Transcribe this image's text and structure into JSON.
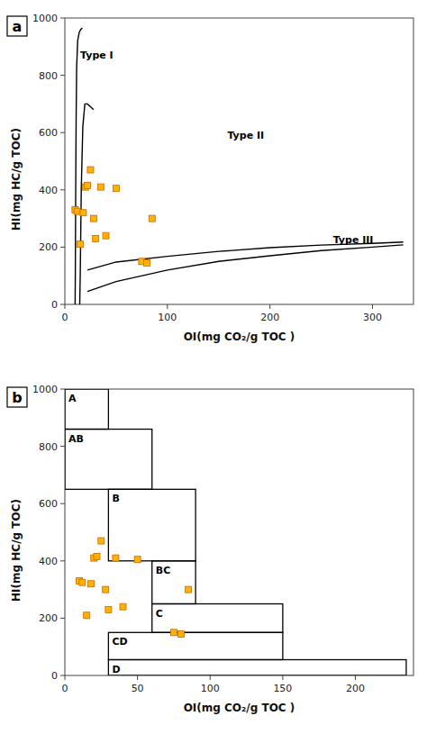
{
  "chart_data": [
    {
      "type": "scatter",
      "title": "a",
      "x_label": "OI(mg CO₂/g TOC )",
      "y_label": "HI(mg HC/g TOC)",
      "xlim": [
        0,
        340
      ],
      "ylim": [
        0,
        1000
      ],
      "xticks": [
        0,
        100,
        200,
        300
      ],
      "yticks": [
        0,
        200,
        400,
        600,
        800,
        1000
      ],
      "series": [
        {
          "type": "line",
          "color": "#000000",
          "x": [
            10.0,
            10.2,
            10.5,
            11.0,
            11.5,
            12.5,
            14.0,
            15.5,
            17.0
          ],
          "values": [
            0,
            100,
            350,
            650,
            830,
            920,
            950,
            960,
            965
          ]
        },
        {
          "type": "line",
          "color": "#000000",
          "x": [
            14.5,
            15.0,
            16.0,
            17.5,
            19.5,
            22.0,
            25.0,
            28.0
          ],
          "values": [
            0,
            100,
            400,
            620,
            700,
            700,
            690,
            680
          ]
        },
        {
          "type": "line",
          "color": "#000000",
          "x": [
            22,
            50,
            100,
            150,
            200,
            250,
            300,
            330
          ],
          "values": [
            45,
            80,
            120,
            150,
            170,
            188,
            200,
            208
          ]
        },
        {
          "type": "line",
          "color": "#000000",
          "x": [
            22,
            50,
            100,
            150,
            200,
            250,
            300,
            330
          ],
          "values": [
            120,
            148,
            168,
            185,
            198,
            207,
            213,
            218
          ]
        },
        {
          "type": "scatter",
          "color": "#FFB300",
          "marker": "square",
          "x": [
            10,
            12,
            15,
            18,
            20,
            22,
            25,
            28,
            30,
            35,
            40,
            50,
            75,
            80,
            85
          ],
          "values": [
            330,
            325,
            210,
            320,
            410,
            415,
            470,
            300,
            230,
            410,
            240,
            405,
            150,
            145,
            300
          ]
        }
      ],
      "annotations": [
        {
          "text": "Type I",
          "x": 11.5,
          "y": 860
        },
        {
          "text": "Type II",
          "x": 155,
          "y": 580
        },
        {
          "text": "Type III",
          "x": 258,
          "y": 215
        }
      ]
    },
    {
      "type": "scatter",
      "title": "b",
      "x_label": "OI(mg CO₂/g TOC )",
      "y_label": "HI(mg HC/g TOC)",
      "xlim": [
        0,
        240
      ],
      "ylim": [
        0,
        1000
      ],
      "xticks": [
        0,
        50,
        100,
        150,
        200
      ],
      "yticks": [
        0,
        200,
        400,
        600,
        800,
        1000
      ],
      "boxes": [
        {
          "label": "A",
          "x0": 0,
          "x1": 30,
          "y0": 860,
          "y1": 1000
        },
        {
          "label": "AB",
          "x0": 0,
          "x1": 60,
          "y0": 650,
          "y1": 860
        },
        {
          "label": "B",
          "x0": 30,
          "x1": 90,
          "y0": 400,
          "y1": 650
        },
        {
          "label": "BC",
          "x0": 60,
          "x1": 90,
          "y0": 250,
          "y1": 400
        },
        {
          "label": "C",
          "x0": 60,
          "x1": 150,
          "y0": 150,
          "y1": 250
        },
        {
          "label": "CD",
          "x0": 30,
          "x1": 150,
          "y0": 55,
          "y1": 150
        },
        {
          "label": "D",
          "x0": 30,
          "x1": 235,
          "y0": 0,
          "y1": 55
        }
      ],
      "series": [
        {
          "type": "scatter",
          "color": "#FFB300",
          "marker": "square",
          "x": [
            10,
            12,
            15,
            18,
            20,
            22,
            25,
            28,
            30,
            35,
            40,
            50,
            75,
            80,
            85
          ],
          "values": [
            330,
            325,
            210,
            320,
            410,
            415,
            470,
            300,
            230,
            410,
            240,
            405,
            150,
            145,
            300
          ]
        }
      ]
    }
  ]
}
